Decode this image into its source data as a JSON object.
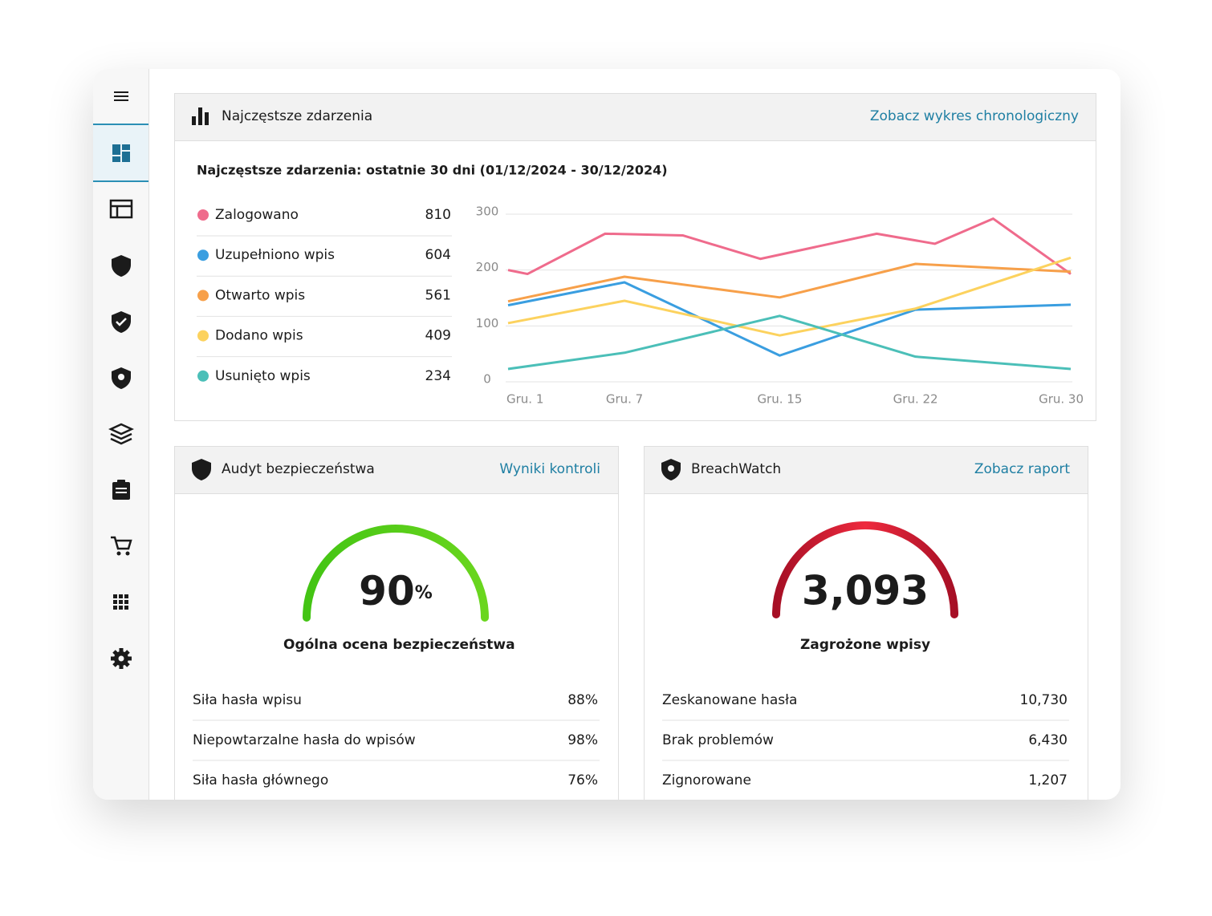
{
  "events_panel": {
    "title": "Najczęstsze zdarzenia",
    "link": "Zobacz wykres chronologiczny"
  },
  "chart_data": {
    "type": "line",
    "title": "Najczęstsze zdarzenia: ostatnie 30 dni (01/12/2024 - 30/12/2024)",
    "xlim": [
      1,
      30
    ],
    "xticks": [
      {
        "value": 1,
        "label": "Gru. 1"
      },
      {
        "value": 7,
        "label": "Gru. 7"
      },
      {
        "value": 15,
        "label": "Gru. 15"
      },
      {
        "value": 22,
        "label": "Gru. 22"
      },
      {
        "value": 30,
        "label": "Gru. 30"
      }
    ],
    "ylim": [
      0,
      300
    ],
    "yticks": [
      0,
      100,
      200,
      300
    ],
    "grid": true,
    "series": [
      {
        "name": "Zalogowano",
        "color": "#ef6b8c",
        "total": 810,
        "x": [
          1,
          2,
          6,
          10,
          14,
          20,
          23,
          26,
          30
        ],
        "values": [
          200,
          193,
          265,
          262,
          220,
          265,
          247,
          292,
          193
        ]
      },
      {
        "name": "Uzupełniono wpis",
        "color": "#3a9ee0",
        "total": 604,
        "x": [
          1,
          7,
          15,
          22,
          30
        ],
        "values": [
          137,
          178,
          47,
          129,
          138
        ]
      },
      {
        "name": "Otwarto wpis",
        "color": "#f7a04a",
        "total": 561,
        "x": [
          1,
          7,
          15,
          22,
          30
        ],
        "values": [
          144,
          188,
          151,
          211,
          197
        ]
      },
      {
        "name": "Dodano wpis",
        "color": "#fcd25e",
        "total": 409,
        "x": [
          1,
          7,
          15,
          22,
          30
        ],
        "values": [
          105,
          145,
          83,
          131,
          222
        ]
      },
      {
        "name": "Usunięto wpis",
        "color": "#4bbfb8",
        "total": 234,
        "x": [
          1,
          7,
          15,
          22,
          30
        ],
        "values": [
          23,
          52,
          118,
          45,
          23
        ]
      }
    ]
  },
  "audit": {
    "title": "Audyt bezpieczeństwa",
    "link": "Wyniki kontroli",
    "score": 90,
    "unit": "%",
    "score_label": "Ogólna ocena bezpieczeństwa",
    "rows": [
      {
        "label": "Siła hasła wpisu",
        "value": "88%"
      },
      {
        "label": "Niepowtarzalne hasła do wpisów",
        "value": "98%"
      },
      {
        "label": "Siła hasła głównego",
        "value": "76%"
      }
    ]
  },
  "breachwatch": {
    "title": "BreachWatch",
    "link": "Zobacz raport",
    "count": "3,093",
    "count_label": "Zagrożone wpisy",
    "rows": [
      {
        "label": "Zeskanowane hasła",
        "value": "10,730"
      },
      {
        "label": "Brak problemów",
        "value": "6,430"
      },
      {
        "label": "Zignorowane",
        "value": "1,207"
      }
    ]
  }
}
